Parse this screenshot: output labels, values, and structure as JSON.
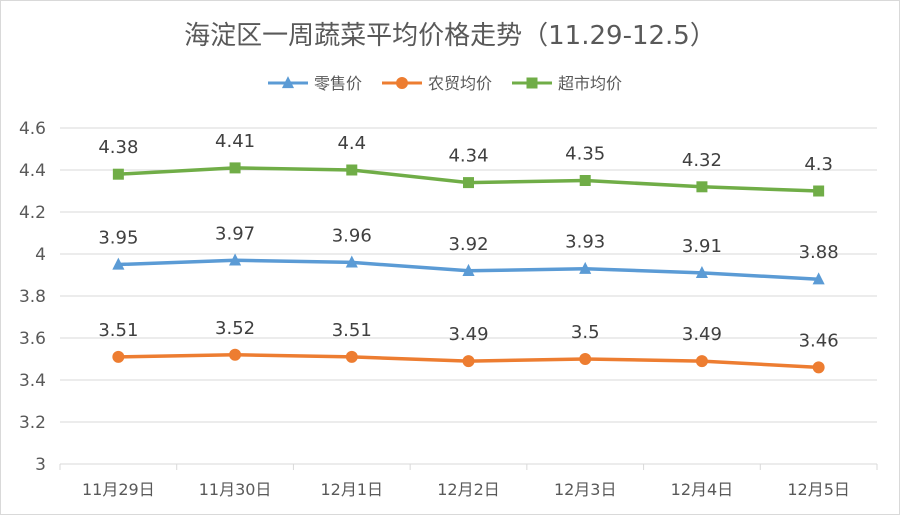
{
  "chart_data": {
    "type": "line",
    "title": "海淀区一周蔬菜平均价格走势（11.29-12.5）",
    "categories": [
      "11月29日",
      "11月30日",
      "12月1日",
      "12月2日",
      "12月3日",
      "12月4日",
      "12月5日"
    ],
    "series": [
      {
        "name": "零售价",
        "color": "#5B9BD5",
        "marker": "triangle",
        "values": [
          3.95,
          3.97,
          3.96,
          3.92,
          3.93,
          3.91,
          3.88
        ]
      },
      {
        "name": "农贸均价",
        "color": "#ED7D31",
        "marker": "circle",
        "values": [
          3.51,
          3.52,
          3.51,
          3.49,
          3.5,
          3.49,
          3.46
        ]
      },
      {
        "name": "超市均价",
        "color": "#70AD47",
        "marker": "square",
        "values": [
          4.38,
          4.41,
          4.4,
          4.34,
          4.35,
          4.32,
          4.3
        ]
      }
    ],
    "ylim": [
      3,
      4.6
    ],
    "yticks": [
      "3",
      "3.2",
      "3.4",
      "3.6",
      "3.8",
      "4",
      "4.2",
      "4.4",
      "4.6"
    ],
    "grid": true,
    "legend_position": "top",
    "xlabel": "",
    "ylabel": ""
  }
}
